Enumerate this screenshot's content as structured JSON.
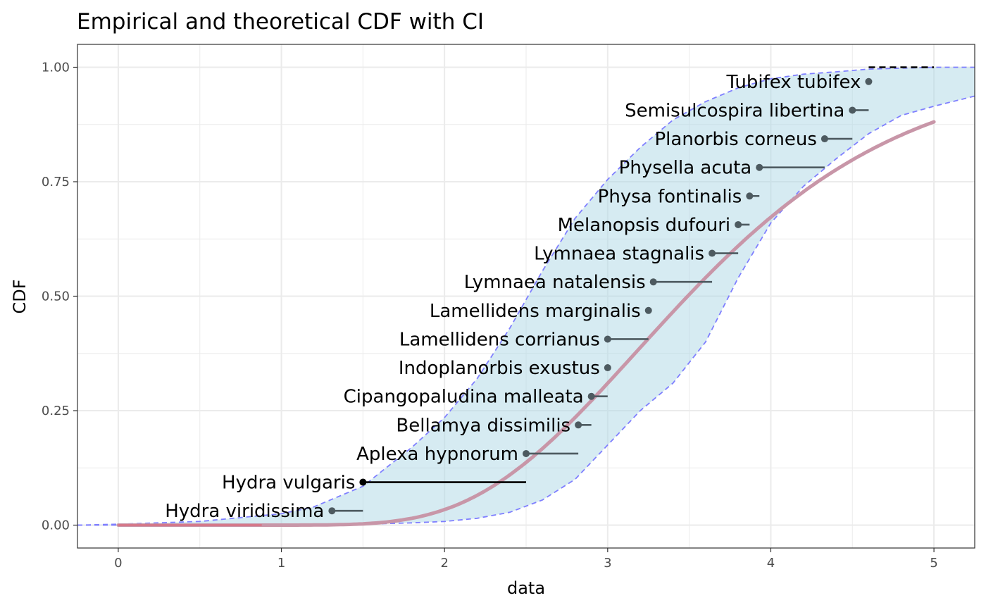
{
  "chart_data": {
    "type": "scatter",
    "title": "Empirical and theoretical CDF with CI",
    "xlabel": "data",
    "ylabel": "CDF",
    "xlim": [
      -0.25,
      5.25
    ],
    "ylim": [
      -0.05,
      1.05
    ],
    "x_ticks": [
      0,
      1,
      2,
      3,
      4,
      5
    ],
    "y_ticks": [
      0.0,
      0.25,
      0.5,
      0.75,
      1.0
    ],
    "x_tick_labels": [
      "0",
      "1",
      "2",
      "3",
      "4",
      "5"
    ],
    "y_tick_labels": [
      "0.00",
      "0.25",
      "0.50",
      "0.75",
      "1.00"
    ],
    "grid": true,
    "legend": "none",
    "colors": {
      "ci_fill": "#add8e6",
      "ci_border": "#7f7fff",
      "fitted_curve": "#c896a8",
      "fitted_curve_start": "#e06070",
      "points": "#4d5a60",
      "point_highlight": "#000000",
      "empirical_step": "#000000"
    },
    "points": [
      {
        "label": "Hydra viridissima",
        "x": 1.31,
        "x_end": 1.5,
        "y": 0.0312
      },
      {
        "label": "Hydra vulgaris",
        "x": 1.5,
        "x_end": 2.5,
        "y": 0.0938
      },
      {
        "label": "Aplexa hypnorum",
        "x": 2.5,
        "x_end": 2.82,
        "y": 0.1562
      },
      {
        "label": "Bellamya dissimilis",
        "x": 2.82,
        "x_end": 2.9,
        "y": 0.2188
      },
      {
        "label": "Cipangopaludina malleata",
        "x": 2.9,
        "x_end": 3.0,
        "y": 0.2812
      },
      {
        "label": "Indoplanorbis exustus",
        "x": 3.0,
        "x_end": 3.0,
        "y": 0.3438
      },
      {
        "label": "Lamellidens corrianus",
        "x": 3.0,
        "x_end": 3.25,
        "y": 0.4062
      },
      {
        "label": "Lamellidens marginalis",
        "x": 3.25,
        "x_end": 3.25,
        "y": 0.4688
      },
      {
        "label": "Lymnaea natalensis",
        "x": 3.28,
        "x_end": 3.64,
        "y": 0.5312
      },
      {
        "label": "Lymnaea stagnalis",
        "x": 3.64,
        "x_end": 3.8,
        "y": 0.5938
      },
      {
        "label": "Melanopsis dufouri",
        "x": 3.8,
        "x_end": 3.87,
        "y": 0.6562
      },
      {
        "label": "Physa fontinalis",
        "x": 3.87,
        "x_end": 3.93,
        "y": 0.7188
      },
      {
        "label": "Physella acuta",
        "x": 3.93,
        "x_end": 4.33,
        "y": 0.7812
      },
      {
        "label": "Planorbis corneus",
        "x": 4.33,
        "x_end": 4.5,
        "y": 0.8438
      },
      {
        "label": "Semisulcospira libertina",
        "x": 4.5,
        "x_end": 4.6,
        "y": 0.9062
      },
      {
        "label": "Tubifex tubifex",
        "x": 4.6,
        "x_end": 4.6,
        "y": 0.9688
      }
    ],
    "empirical_step_ends": {
      "bottom": [
        0.75,
        1.31
      ],
      "top": [
        4.6,
        5.0
      ]
    },
    "fitted_curve": {
      "distribution": "lognormal",
      "meanlog": 1.25,
      "sdlog": 0.305,
      "x_range": [
        0,
        5
      ]
    },
    "ci_band": {
      "lower": [
        [
          -0.25,
          0.0
        ],
        [
          0.5,
          0.0
        ],
        [
          1.0,
          0.0005
        ],
        [
          1.5,
          0.002
        ],
        [
          1.8,
          0.005
        ],
        [
          2.0,
          0.008
        ],
        [
          2.2,
          0.015
        ],
        [
          2.4,
          0.028
        ],
        [
          2.6,
          0.055
        ],
        [
          2.8,
          0.1
        ],
        [
          3.0,
          0.175
        ],
        [
          3.2,
          0.25
        ],
        [
          3.4,
          0.31
        ],
        [
          3.6,
          0.4
        ],
        [
          3.8,
          0.54
        ],
        [
          4.0,
          0.66
        ],
        [
          4.2,
          0.74
        ],
        [
          4.4,
          0.8
        ],
        [
          4.6,
          0.855
        ],
        [
          4.8,
          0.895
        ],
        [
          5.0,
          0.915
        ],
        [
          5.25,
          0.937
        ]
      ],
      "upper": [
        [
          -0.25,
          0.0
        ],
        [
          0.0,
          0.002
        ],
        [
          0.5,
          0.008
        ],
        [
          1.0,
          0.025
        ],
        [
          1.2,
          0.04
        ],
        [
          1.5,
          0.085
        ],
        [
          1.8,
          0.17
        ],
        [
          2.0,
          0.235
        ],
        [
          2.2,
          0.32
        ],
        [
          2.4,
          0.43
        ],
        [
          2.6,
          0.555
        ],
        [
          2.8,
          0.67
        ],
        [
          3.0,
          0.755
        ],
        [
          3.2,
          0.825
        ],
        [
          3.4,
          0.885
        ],
        [
          3.6,
          0.925
        ],
        [
          3.8,
          0.955
        ],
        [
          4.0,
          0.975
        ],
        [
          4.2,
          0.985
        ],
        [
          4.4,
          0.99
        ],
        [
          4.6,
          0.996
        ],
        [
          5.0,
          1.0
        ],
        [
          5.25,
          1.0
        ]
      ]
    }
  }
}
